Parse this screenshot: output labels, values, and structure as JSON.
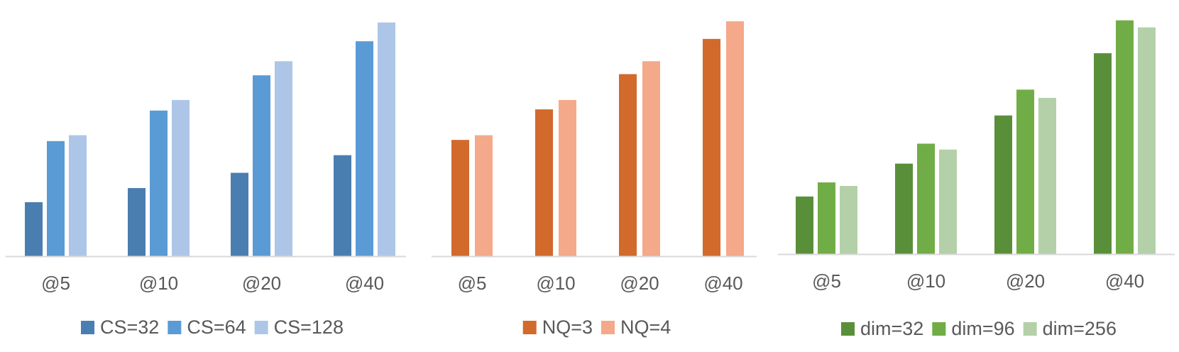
{
  "chart_data": [
    {
      "type": "bar",
      "categories": [
        "@5",
        "@10",
        "@20",
        "@40"
      ],
      "ylim": [
        0,
        100
      ],
      "grid": false,
      "legend_position": "bottom",
      "series": [
        {
          "name": "CS=32",
          "color": "#4a7eb0",
          "values": [
            23,
            29,
            35.5,
            43
          ]
        },
        {
          "name": "CS=64",
          "color": "#5b9bd5",
          "values": [
            49,
            62,
            77,
            91.5
          ]
        },
        {
          "name": "CS=128",
          "color": "#adc6e8",
          "values": [
            51.5,
            66.5,
            83,
            99.5
          ]
        }
      ]
    },
    {
      "type": "bar",
      "categories": [
        "@5",
        "@10",
        "@20",
        "@40"
      ],
      "ylim": [
        0,
        100
      ],
      "grid": false,
      "legend_position": "bottom",
      "series": [
        {
          "name": "NQ=3",
          "color": "#d16a2b",
          "values": [
            49.5,
            62.5,
            77.5,
            92.5
          ]
        },
        {
          "name": "NQ=4",
          "color": "#f4a98a",
          "values": [
            51.5,
            66.5,
            83,
            100
          ]
        }
      ]
    },
    {
      "type": "bar",
      "categories": [
        "@5",
        "@10",
        "@20",
        "@40"
      ],
      "ylim": [
        0,
        100
      ],
      "grid": false,
      "legend_position": "bottom",
      "series": [
        {
          "name": "dim=32",
          "color": "#5a8f3a",
          "values": [
            24.5,
            38.5,
            59,
            85.5
          ]
        },
        {
          "name": "dim=96",
          "color": "#71ad47",
          "values": [
            30.5,
            47,
            70,
            99.5
          ]
        },
        {
          "name": "dim=256",
          "color": "#b4d0a8",
          "values": [
            29,
            44.5,
            66.5,
            96.5
          ]
        }
      ]
    }
  ]
}
